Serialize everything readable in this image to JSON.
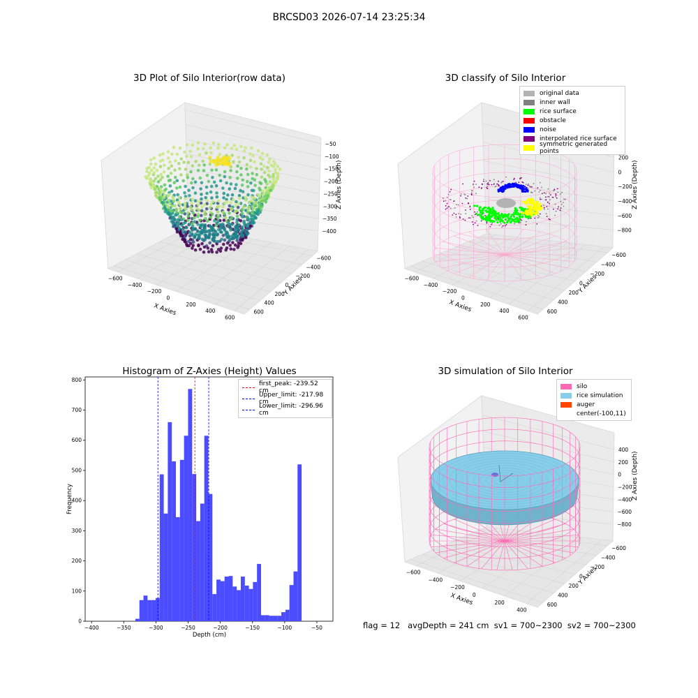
{
  "suptitle": "BRCSD03 2026-07-14 23:25:34",
  "footer": "flag = 12   avgDepth = 241 cm  sv1 = 700~2300  sv2 = 700~2300",
  "panels": {
    "raw": {
      "title": "3D Plot of Silo Interior(row data)",
      "xlabel": "X Axies",
      "ylabel": "Y Axies",
      "zlabel": "Z Axies (Depth)",
      "xticks": [
        "−600",
        "−400",
        "−200",
        "0",
        "200",
        "400",
        "600"
      ],
      "yticks": [
        "600",
        "400",
        "200",
        "0",
        "−200",
        "−400",
        "−600"
      ],
      "zticks": [
        "−50",
        "−100",
        "−150",
        "−200",
        "−250",
        "−300",
        "−350",
        "−400"
      ]
    },
    "classify": {
      "title": "3D classify of Silo Interior",
      "xlabel": "X Axies",
      "ylabel": "Y Axies",
      "zlabel": "Z Axies (Depth)",
      "xticks": [
        "−600",
        "−400",
        "−200",
        "0",
        "200",
        "400",
        "600"
      ],
      "yticks": [
        "600",
        "400",
        "200",
        "0",
        "−200",
        "−400",
        "−600"
      ],
      "zticks": [
        "200",
        "0",
        "−200",
        "−400",
        "−600",
        "−800"
      ],
      "legend": [
        {
          "label": "original data",
          "color": "#b3b3b3"
        },
        {
          "label": "inner wall",
          "color": "#808080"
        },
        {
          "label": "rice surface",
          "color": "#00ff00"
        },
        {
          "label": "obstacle",
          "color": "#ff0000"
        },
        {
          "label": "noise",
          "color": "#0000ff"
        },
        {
          "label": "interpolated rice surface",
          "color": "#800080"
        },
        {
          "label": "symmetric generated points",
          "color": "#ffff00"
        }
      ]
    },
    "simulation": {
      "title": "3D simulation of Silo Interior",
      "xlabel": "X Axies",
      "ylabel": "Y Axies",
      "zlabel": "Z Axies (Depth)",
      "xticks": [
        "−600",
        "−400",
        "−200",
        "0",
        "200",
        "400"
      ],
      "yticks": [
        "600",
        "400",
        "200",
        "0",
        "−200",
        "−400",
        "−600"
      ],
      "zticks": [
        "400",
        "200",
        "0",
        "−200",
        "−400",
        "−600",
        "−800"
      ],
      "legend": [
        {
          "label": "silo",
          "color": "#ff69b4"
        },
        {
          "label": "rice simulation",
          "color": "#87ceeb"
        },
        {
          "label": "auger",
          "color": "#ff4500"
        },
        {
          "label": "center(-100,11)",
          "color": "#ffffff"
        }
      ]
    }
  },
  "chart_data": {
    "type": "bar",
    "title": "Histogram of Z-Axies (Height) Values",
    "xlabel": "Depth (cm)",
    "ylabel": "Frequency",
    "xlim": [
      -410,
      -25
    ],
    "ylim": [
      0,
      810
    ],
    "xticks": [
      -400,
      -350,
      -300,
      -250,
      -200,
      -150,
      -100,
      -50
    ],
    "yticks": [
      0,
      100,
      200,
      300,
      400,
      500,
      600,
      700,
      800
    ],
    "bar_color": "#4b4bff",
    "bins": [
      {
        "x0": -332.0,
        "x1": -325.7,
        "count": 8
      },
      {
        "x0": -325.7,
        "x1": -319.4,
        "count": 70
      },
      {
        "x0": -319.4,
        "x1": -313.1,
        "count": 85
      },
      {
        "x0": -313.1,
        "x1": -306.8,
        "count": 70
      },
      {
        "x0": -306.8,
        "x1": -300.5,
        "count": 70
      },
      {
        "x0": -300.5,
        "x1": -294.2,
        "count": 77
      },
      {
        "x0": -294.2,
        "x1": -287.9,
        "count": 487
      },
      {
        "x0": -287.9,
        "x1": -281.6,
        "count": 357
      },
      {
        "x0": -281.6,
        "x1": -275.3,
        "count": 660
      },
      {
        "x0": -275.3,
        "x1": -269.0,
        "count": 530
      },
      {
        "x0": -269.0,
        "x1": -262.7,
        "count": 345
      },
      {
        "x0": -262.7,
        "x1": -256.4,
        "count": 535
      },
      {
        "x0": -256.4,
        "x1": -250.1,
        "count": 615
      },
      {
        "x0": -250.1,
        "x1": -243.8,
        "count": 770
      },
      {
        "x0": -243.8,
        "x1": -237.5,
        "count": 488
      },
      {
        "x0": -237.5,
        "x1": -231.2,
        "count": 332
      },
      {
        "x0": -231.2,
        "x1": -224.9,
        "count": 390
      },
      {
        "x0": -224.9,
        "x1": -218.6,
        "count": 615
      },
      {
        "x0": -218.6,
        "x1": -212.3,
        "count": 422
      },
      {
        "x0": -212.3,
        "x1": -206.0,
        "count": 90
      },
      {
        "x0": -206.0,
        "x1": -199.7,
        "count": 138
      },
      {
        "x0": -199.7,
        "x1": -193.4,
        "count": 133
      },
      {
        "x0": -193.4,
        "x1": -187.1,
        "count": 148
      },
      {
        "x0": -187.1,
        "x1": -180.8,
        "count": 150
      },
      {
        "x0": -180.8,
        "x1": -174.5,
        "count": 115
      },
      {
        "x0": -174.5,
        "x1": -168.2,
        "count": 103
      },
      {
        "x0": -168.2,
        "x1": -161.9,
        "count": 148
      },
      {
        "x0": -161.9,
        "x1": -155.6,
        "count": 118
      },
      {
        "x0": -155.6,
        "x1": -149.3,
        "count": 107
      },
      {
        "x0": -149.3,
        "x1": -143.0,
        "count": 130
      },
      {
        "x0": -143.0,
        "x1": -136.7,
        "count": 190
      },
      {
        "x0": -136.7,
        "x1": -130.4,
        "count": 20
      },
      {
        "x0": -130.4,
        "x1": -124.1,
        "count": 20
      },
      {
        "x0": -124.1,
        "x1": -117.8,
        "count": 18
      },
      {
        "x0": -117.8,
        "x1": -111.5,
        "count": 18
      },
      {
        "x0": -111.5,
        "x1": -105.2,
        "count": 18
      },
      {
        "x0": -105.2,
        "x1": -98.9,
        "count": 30
      },
      {
        "x0": -98.9,
        "x1": -92.6,
        "count": 38
      },
      {
        "x0": -92.6,
        "x1": -86.3,
        "count": 120
      },
      {
        "x0": -86.3,
        "x1": -80.0,
        "count": 165
      },
      {
        "x0": -80.0,
        "x1": -73.7,
        "count": 520
      }
    ],
    "vlines": [
      {
        "label": "first_peak: -239.52 cm",
        "x": -239.52,
        "color": "#ff0000"
      },
      {
        "label": "Upper_limit: -217.98 cm",
        "x": -217.98,
        "color": "#0000ff"
      },
      {
        "label": "Lower_limit: -296.96 cm",
        "x": -296.96,
        "color": "#0000ff"
      }
    ]
  }
}
